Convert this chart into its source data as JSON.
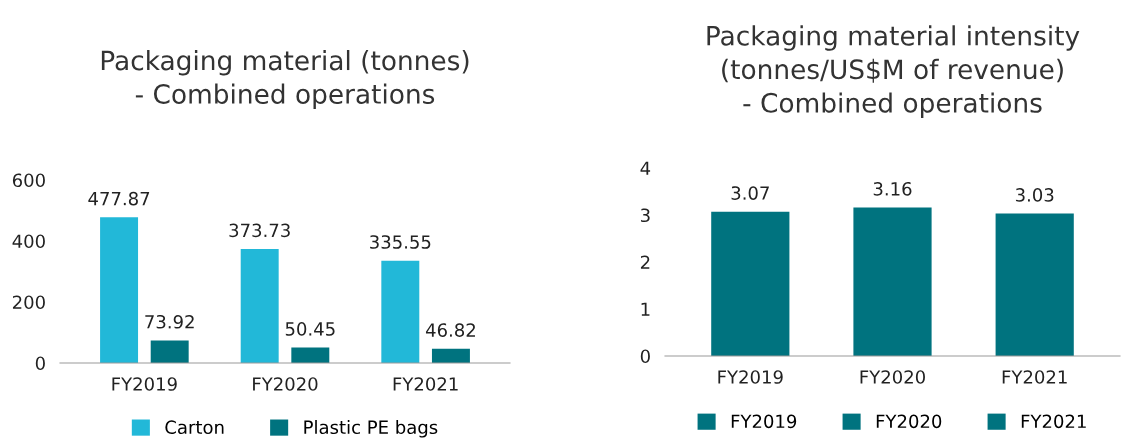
{
  "chart_data": [
    {
      "type": "bar",
      "title": "Packaging material (tonnes)\n- Combined operations",
      "categories": [
        "FY2019",
        "FY2020",
        "FY2021"
      ],
      "series": [
        {
          "name": "Carton",
          "color": "#22b8d8",
          "values": [
            477.87,
            373.73,
            335.55
          ]
        },
        {
          "name": "Plastic PE bags",
          "color": "#00737f",
          "values": [
            73.92,
            50.45,
            46.82
          ]
        }
      ],
      "ylim": [
        0,
        600
      ],
      "yticks": [
        0,
        200,
        400,
        600
      ],
      "data_labels": true,
      "grid": false,
      "legend": "bottom"
    },
    {
      "type": "bar",
      "title": "Packaging material intensity\n(tonnes/US$M of revenue)\n- Combined operations",
      "categories": [
        "FY2019",
        "FY2020",
        "FY2021"
      ],
      "stacked": true,
      "series": [
        {
          "name": "FY2019",
          "color": "#00737f",
          "values": [
            3.07,
            null,
            null
          ]
        },
        {
          "name": "FY2020",
          "color": "#00737f",
          "values": [
            null,
            3.16,
            null
          ]
        },
        {
          "name": "FY2021",
          "color": "#00737f",
          "values": [
            null,
            null,
            3.03
          ]
        }
      ],
      "ylim": [
        0,
        4
      ],
      "yticks": [
        0,
        1,
        2,
        3,
        4
      ],
      "data_labels": true,
      "grid": false,
      "legend": "bottom"
    }
  ]
}
